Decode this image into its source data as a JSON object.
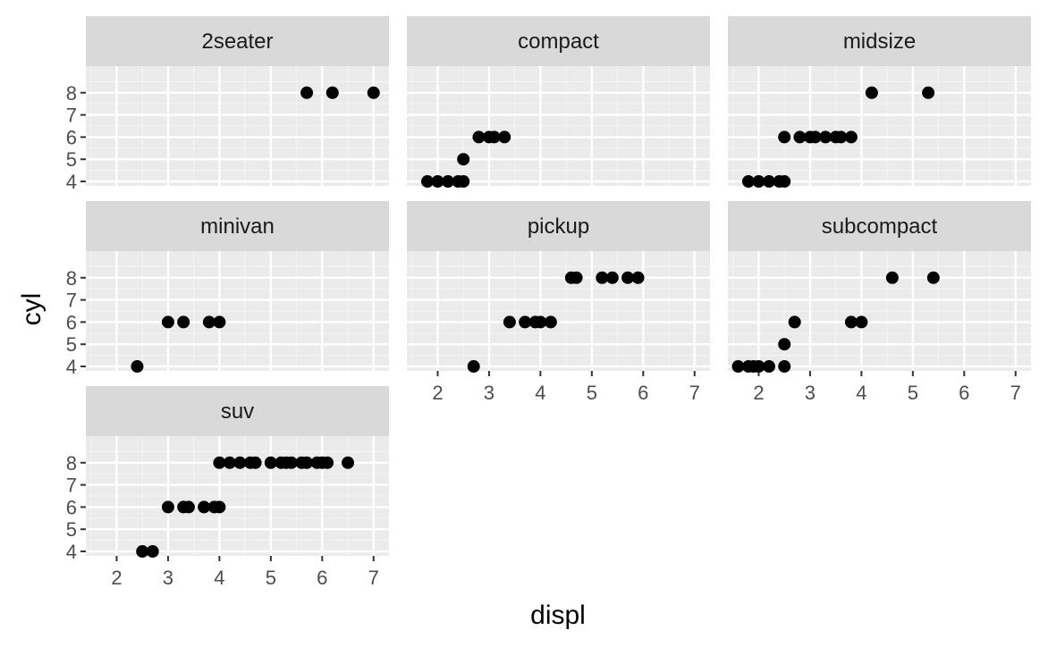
{
  "chart_data": {
    "type": "scatter",
    "layout": "facet_wrap",
    "xlabel": "displ",
    "ylabel": "cyl",
    "xlim": [
      1.4,
      7.3
    ],
    "ylim": [
      3.8,
      9.2
    ],
    "x_ticks": [
      2,
      3,
      4,
      5,
      6,
      7
    ],
    "y_ticks": [
      4,
      5,
      6,
      7,
      8
    ],
    "grid": true,
    "colors": {
      "panel_bg": "#EBEBEB",
      "grid_major": "#FFFFFF",
      "grid_minor": "#F4F4F4",
      "strip_bg": "#D9D9D9",
      "point": "#000000",
      "tick": "#333333"
    },
    "facets": [
      {
        "label": "2seater",
        "points": [
          [
            5.7,
            8
          ],
          [
            6.2,
            8
          ],
          [
            7.0,
            8
          ]
        ]
      },
      {
        "label": "compact",
        "points": [
          [
            1.8,
            4
          ],
          [
            2.0,
            4
          ],
          [
            2.2,
            4
          ],
          [
            2.4,
            4
          ],
          [
            2.5,
            4
          ],
          [
            2.5,
            5
          ],
          [
            2.8,
            6
          ],
          [
            3.0,
            6
          ],
          [
            3.1,
            6
          ],
          [
            3.3,
            6
          ]
        ]
      },
      {
        "label": "midsize",
        "points": [
          [
            1.8,
            4
          ],
          [
            2.0,
            4
          ],
          [
            2.2,
            4
          ],
          [
            2.4,
            4
          ],
          [
            2.5,
            4
          ],
          [
            2.5,
            6
          ],
          [
            2.8,
            6
          ],
          [
            3.0,
            6
          ],
          [
            3.1,
            6
          ],
          [
            3.3,
            6
          ],
          [
            3.5,
            6
          ],
          [
            3.6,
            6
          ],
          [
            3.8,
            6
          ],
          [
            4.2,
            8
          ],
          [
            5.3,
            8
          ]
        ]
      },
      {
        "label": "minivan",
        "points": [
          [
            2.4,
            4
          ],
          [
            3.0,
            6
          ],
          [
            3.3,
            6
          ],
          [
            3.8,
            6
          ],
          [
            4.0,
            6
          ]
        ]
      },
      {
        "label": "pickup",
        "points": [
          [
            2.7,
            4
          ],
          [
            3.4,
            6
          ],
          [
            3.7,
            6
          ],
          [
            3.9,
            6
          ],
          [
            4.0,
            6
          ],
          [
            4.2,
            6
          ],
          [
            4.6,
            8
          ],
          [
            4.7,
            8
          ],
          [
            5.2,
            8
          ],
          [
            5.4,
            8
          ],
          [
            5.7,
            8
          ],
          [
            5.9,
            8
          ]
        ]
      },
      {
        "label": "subcompact",
        "points": [
          [
            1.6,
            4
          ],
          [
            1.8,
            4
          ],
          [
            1.9,
            4
          ],
          [
            2.0,
            4
          ],
          [
            2.2,
            4
          ],
          [
            2.5,
            4
          ],
          [
            2.5,
            5
          ],
          [
            2.7,
            6
          ],
          [
            3.8,
            6
          ],
          [
            4.0,
            6
          ],
          [
            4.6,
            8
          ],
          [
            5.4,
            8
          ]
        ]
      },
      {
        "label": "suv",
        "points": [
          [
            2.5,
            4
          ],
          [
            2.7,
            4
          ],
          [
            3.0,
            6
          ],
          [
            3.3,
            6
          ],
          [
            3.4,
            6
          ],
          [
            3.7,
            6
          ],
          [
            3.9,
            6
          ],
          [
            4.0,
            6
          ],
          [
            4.0,
            8
          ],
          [
            4.2,
            8
          ],
          [
            4.4,
            8
          ],
          [
            4.6,
            8
          ],
          [
            4.7,
            8
          ],
          [
            5.0,
            8
          ],
          [
            5.2,
            8
          ],
          [
            5.3,
            8
          ],
          [
            5.4,
            8
          ],
          [
            5.6,
            8
          ],
          [
            5.7,
            8
          ],
          [
            5.9,
            8
          ],
          [
            6.0,
            8
          ],
          [
            6.1,
            8
          ],
          [
            6.5,
            8
          ]
        ]
      }
    ]
  }
}
